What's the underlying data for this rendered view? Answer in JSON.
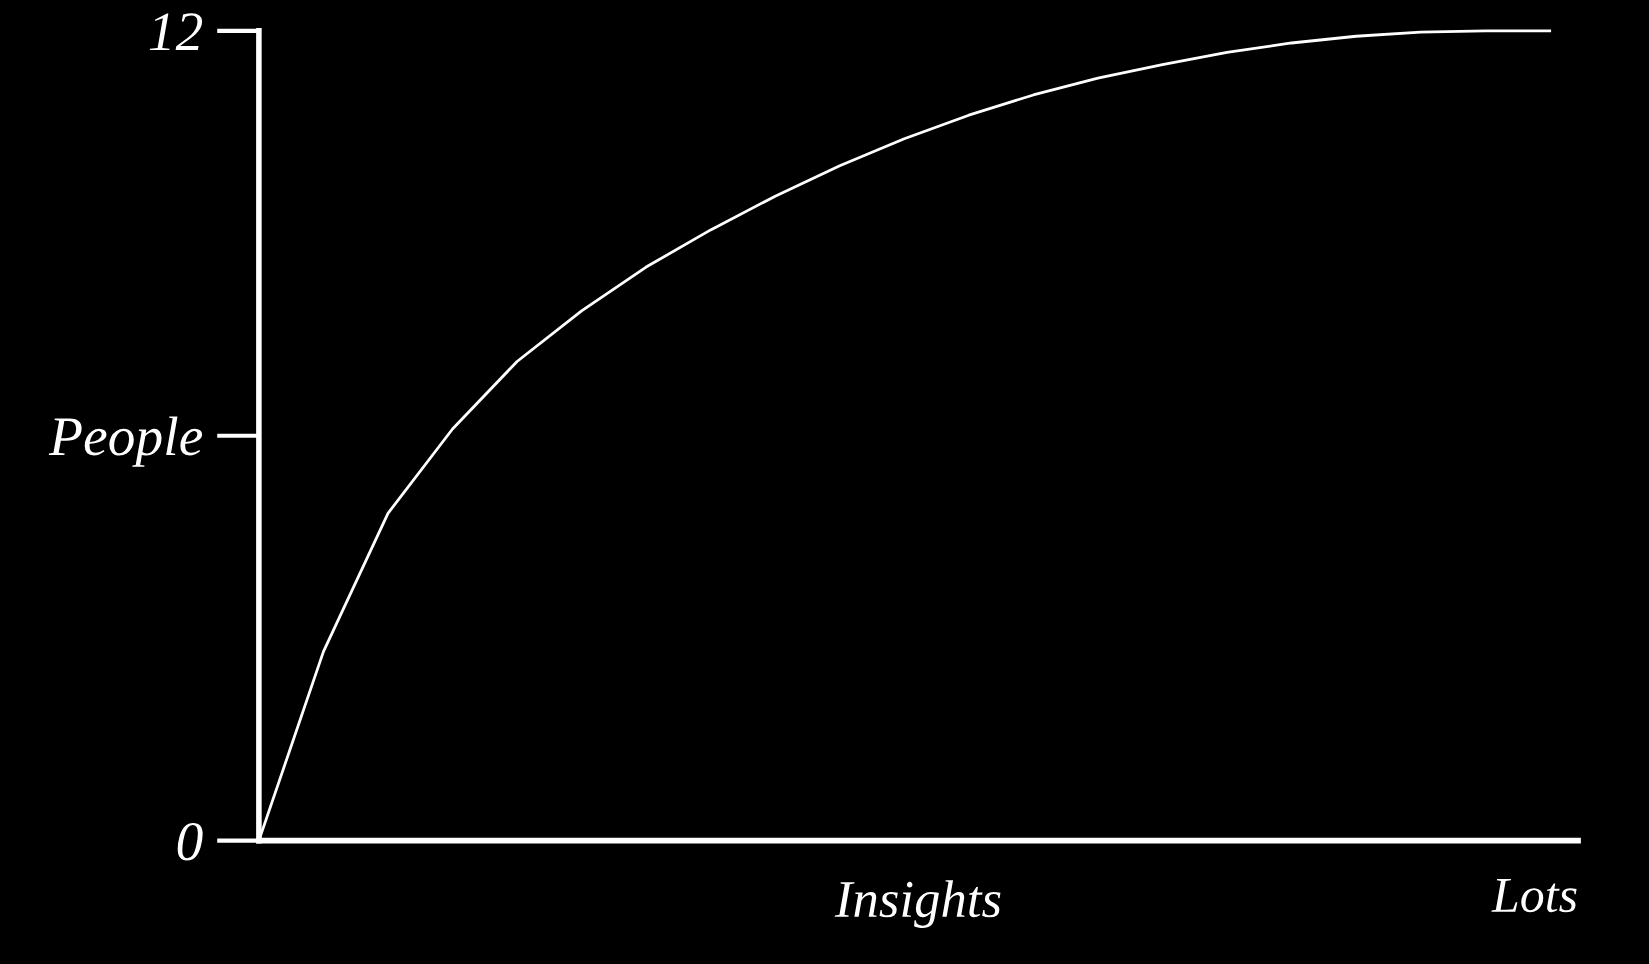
{
  "chart_data": {
    "type": "line",
    "xlabel": "Insights",
    "categories": [
      null,
      null,
      null,
      null,
      null,
      null,
      null,
      null,
      null,
      null,
      null,
      null,
      null,
      null,
      null,
      null,
      null,
      null,
      null,
      null,
      null
    ],
    "series": [
      {
        "color": "#ffffff",
        "values": [
          0,
          2.8,
          4.85,
          6.1,
          7.1,
          7.85,
          8.5,
          9.05,
          9.55,
          10.0,
          10.4,
          10.75,
          11.05,
          11.3,
          11.5,
          11.68,
          11.82,
          11.92,
          11.98,
          12.0,
          12.0
        ]
      }
    ],
    "ylim": [
      0,
      12
    ],
    "yticks": [
      0,
      {
        "value": 6,
        "label": "People"
      },
      12
    ],
    "annotations": [
      "Lots"
    ],
    "grid": false,
    "legend": false,
    "marker": "none",
    "line_style": "solid"
  }
}
